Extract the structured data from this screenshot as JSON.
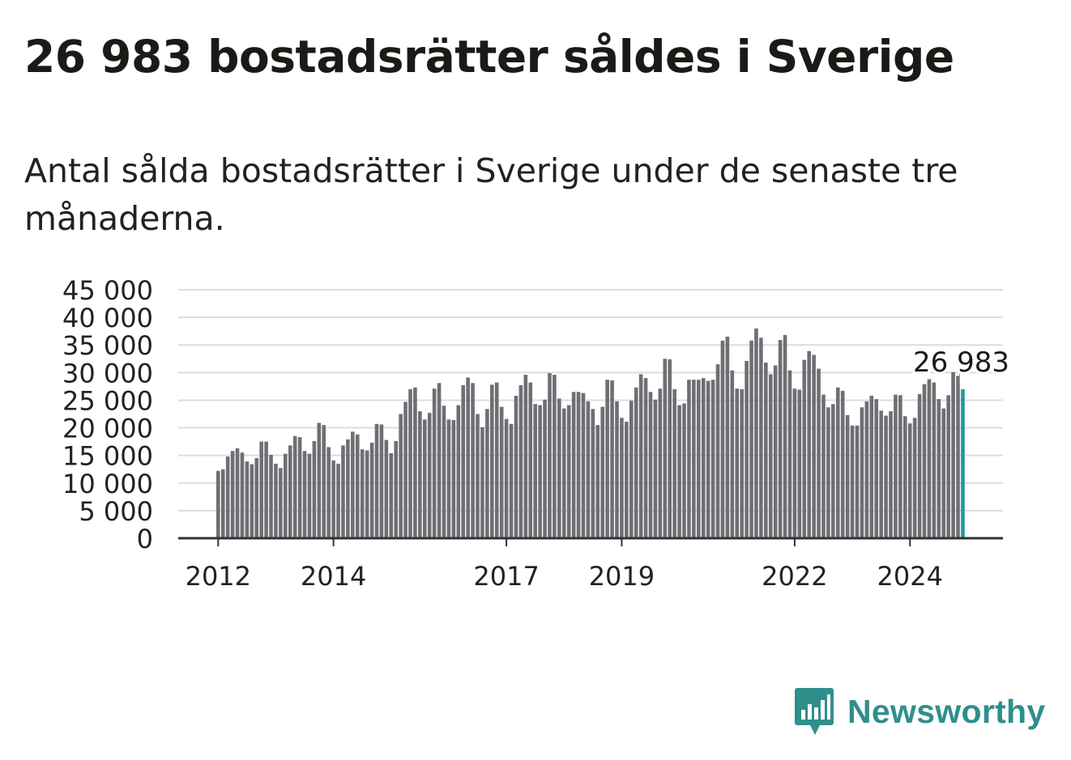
{
  "header": {
    "title": "26 983 bostadsrätter såldes i Sverige",
    "subtitle": "Antal sålda bostadsrätter i Sverige under de senaste tre månaderna."
  },
  "brand": {
    "name": "Newsworthy",
    "icon": "newsworthy-logo-icon",
    "color": "#2f8f8b"
  },
  "colors": {
    "bar": "#6f6e74",
    "highlight": "#1e9a97",
    "grid": "#dcdcdc",
    "axis": "#333333",
    "text": "#222222"
  },
  "chart_data": {
    "type": "bar",
    "title": "26 983 bostadsrätter såldes i Sverige",
    "subtitle": "Antal sålda bostadsrätter i Sverige under de senaste tre månaderna.",
    "xlabel": "",
    "ylabel": "",
    "ylim": [
      0,
      45000
    ],
    "yticks": [
      "0",
      "5 000",
      "10 000",
      "15 000",
      "20 000",
      "25 000",
      "30 000",
      "35 000",
      "40 000",
      "45 000"
    ],
    "xticks": [
      "2012",
      "2014",
      "2017",
      "2019",
      "2022",
      "2024"
    ],
    "grid": true,
    "start_month": "2012-01",
    "frequency": "monthly",
    "highlight_last": true,
    "last_label": "26 983",
    "values": [
      12200,
      12500,
      14800,
      15800,
      16300,
      15500,
      13900,
      13400,
      14500,
      17500,
      17500,
      15100,
      13500,
      12700,
      15300,
      16800,
      18500,
      18300,
      15800,
      15300,
      17600,
      20900,
      20500,
      16500,
      14100,
      13500,
      16800,
      17900,
      19300,
      18800,
      16100,
      15900,
      17300,
      20700,
      20600,
      17800,
      15400,
      17600,
      22500,
      24700,
      27000,
      27300,
      23000,
      21500,
      22700,
      27100,
      28100,
      24000,
      21500,
      21400,
      24100,
      27700,
      29100,
      28100,
      22500,
      20100,
      23400,
      27800,
      28200,
      23800,
      21600,
      20700,
      25800,
      27700,
      29600,
      28200,
      24300,
      24100,
      25100,
      29900,
      29600,
      25300,
      23500,
      24100,
      26500,
      26500,
      26300,
      24800,
      23400,
      20500,
      23800,
      28700,
      28600,
      24800,
      21800,
      21100,
      24900,
      27300,
      29700,
      29000,
      26500,
      25100,
      27100,
      32500,
      32400,
      27000,
      24100,
      24400,
      28700,
      28700,
      28700,
      29000,
      28500,
      28700,
      31500,
      35800,
      36500,
      30400,
      27100,
      27000,
      32100,
      35800,
      38000,
      36300,
      31800,
      29700,
      31300,
      35900,
      36800,
      30400,
      27100,
      26900,
      32300,
      33900,
      33200,
      30700,
      26000,
      23700,
      24300,
      27300,
      26700,
      22300,
      20400,
      20400,
      23700,
      24800,
      25800,
      25200,
      23100,
      22200,
      23000,
      26000,
      25900,
      22100,
      20800,
      21800,
      26100,
      27900,
      28800,
      28200,
      25200,
      23500,
      25900,
      30100,
      29400,
      26983
    ]
  }
}
